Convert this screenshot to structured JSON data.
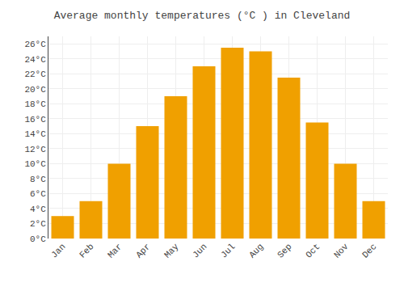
{
  "chart_data": {
    "type": "bar",
    "title": "Average monthly temperatures (°C ) in Cleveland",
    "categories": [
      "Jan",
      "Feb",
      "Mar",
      "Apr",
      "May",
      "Jun",
      "Jul",
      "Aug",
      "Sep",
      "Oct",
      "Nov",
      "Dec"
    ],
    "values": [
      3,
      5,
      10,
      15,
      19,
      23,
      25.5,
      25,
      21.5,
      15.5,
      10,
      5
    ],
    "color": "#F0A000",
    "ylim": [
      0,
      27
    ],
    "yticks": [
      {
        "value": 0,
        "label": "0°C"
      },
      {
        "value": 2,
        "label": "2°C"
      },
      {
        "value": 4,
        "label": "4°C"
      },
      {
        "value": 6,
        "label": "6°C"
      },
      {
        "value": 8,
        "label": "8°C"
      },
      {
        "value": 10,
        "label": "10°C"
      },
      {
        "value": 12,
        "label": "12°C"
      },
      {
        "value": 14,
        "label": "14°C"
      },
      {
        "value": 16,
        "label": "16°C"
      },
      {
        "value": 18,
        "label": "18°C"
      },
      {
        "value": 20,
        "label": "20°C"
      },
      {
        "value": 22,
        "label": "22°C"
      },
      {
        "value": 24,
        "label": "24°C"
      },
      {
        "value": 26,
        "label": "26°C"
      }
    ],
    "grid": true
  }
}
